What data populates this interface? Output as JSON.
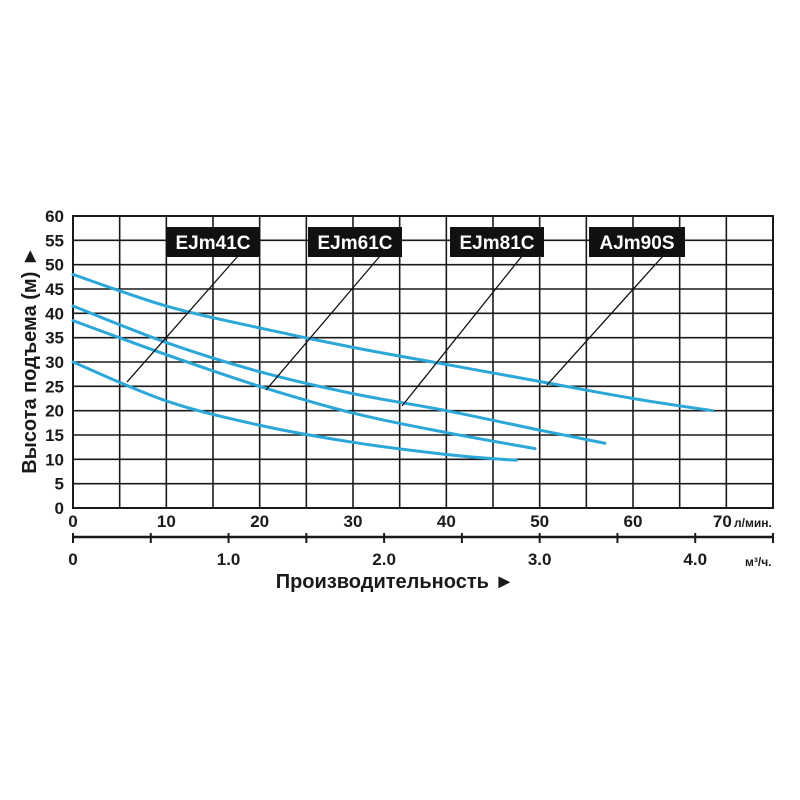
{
  "chart_data": {
    "type": "line",
    "ylabel": "Высота подъема (м) ►",
    "xlabel": "Производительность ►",
    "ylim": [
      0,
      60
    ],
    "yticks": [
      0,
      5,
      10,
      15,
      20,
      25,
      30,
      35,
      40,
      45,
      50,
      55,
      60
    ],
    "xlim": [
      0,
      75
    ],
    "xticks": [
      0,
      10,
      20,
      30,
      40,
      50,
      60,
      70
    ],
    "x_unit": "л/мин.",
    "x2ticks": [
      "0",
      "1.0",
      "2.0",
      "3.0",
      "4.0"
    ],
    "x2_unit": "м³/ч.",
    "grid": true,
    "series": [
      {
        "name": "EJm41C",
        "x": [
          0,
          10,
          20,
          30,
          40,
          47.5
        ],
        "y": [
          30,
          22,
          17,
          13.5,
          11,
          9.8
        ]
      },
      {
        "name": "EJm61C",
        "x": [
          0,
          10,
          20,
          30,
          40,
          49.5
        ],
        "y": [
          38.5,
          31.5,
          25,
          19.5,
          15.5,
          12.2
        ]
      },
      {
        "name": "EJm81C",
        "x": [
          0,
          10,
          20,
          30,
          40,
          50,
          57
        ],
        "y": [
          41.5,
          34,
          28,
          23.5,
          20,
          16,
          13.3
        ]
      },
      {
        "name": "AJm90S",
        "x": [
          0,
          10,
          20,
          30,
          40,
          50,
          60,
          68.5
        ],
        "y": [
          48,
          41.5,
          37,
          33,
          29.5,
          26,
          22.5,
          20
        ]
      }
    ],
    "colors": {
      "line": "#2ba7d8"
    }
  }
}
